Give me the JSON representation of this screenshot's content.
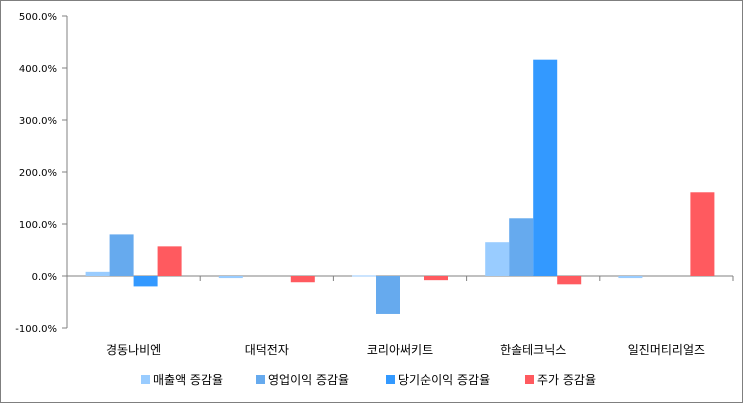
{
  "chart_data": {
    "type": "bar",
    "categories": [
      "경동나비엔",
      "대덕전자",
      "코리아써키트",
      "한솔테크닉스",
      "일진머티리얼즈"
    ],
    "series": [
      {
        "name": "매출액 증감율",
        "color": "#99ccff",
        "values": [
          8,
          -4,
          1,
          65,
          -4
        ]
      },
      {
        "name": "영업이익 증감율",
        "color": "#66aaee",
        "values": [
          80,
          0,
          -73,
          111,
          0
        ]
      },
      {
        "name": "당기순이익 증감율",
        "color": "#3399ff",
        "values": [
          -20,
          0,
          0,
          416,
          0
        ]
      },
      {
        "name": "주가 증감율",
        "color": "#ff5a5f",
        "values": [
          57,
          -12,
          -8,
          -16,
          161
        ]
      }
    ],
    "ylim": [
      -100,
      500
    ],
    "yticks": [
      -100,
      0,
      100,
      200,
      300,
      400,
      500
    ],
    "ytick_labels": [
      "-100.0%",
      "0.0%",
      "100.0%",
      "200.0%",
      "300.0%",
      "400.0%",
      "500.0%"
    ],
    "title": "",
    "xlabel": "",
    "ylabel": "",
    "legend_position": "bottom",
    "grid": false
  }
}
